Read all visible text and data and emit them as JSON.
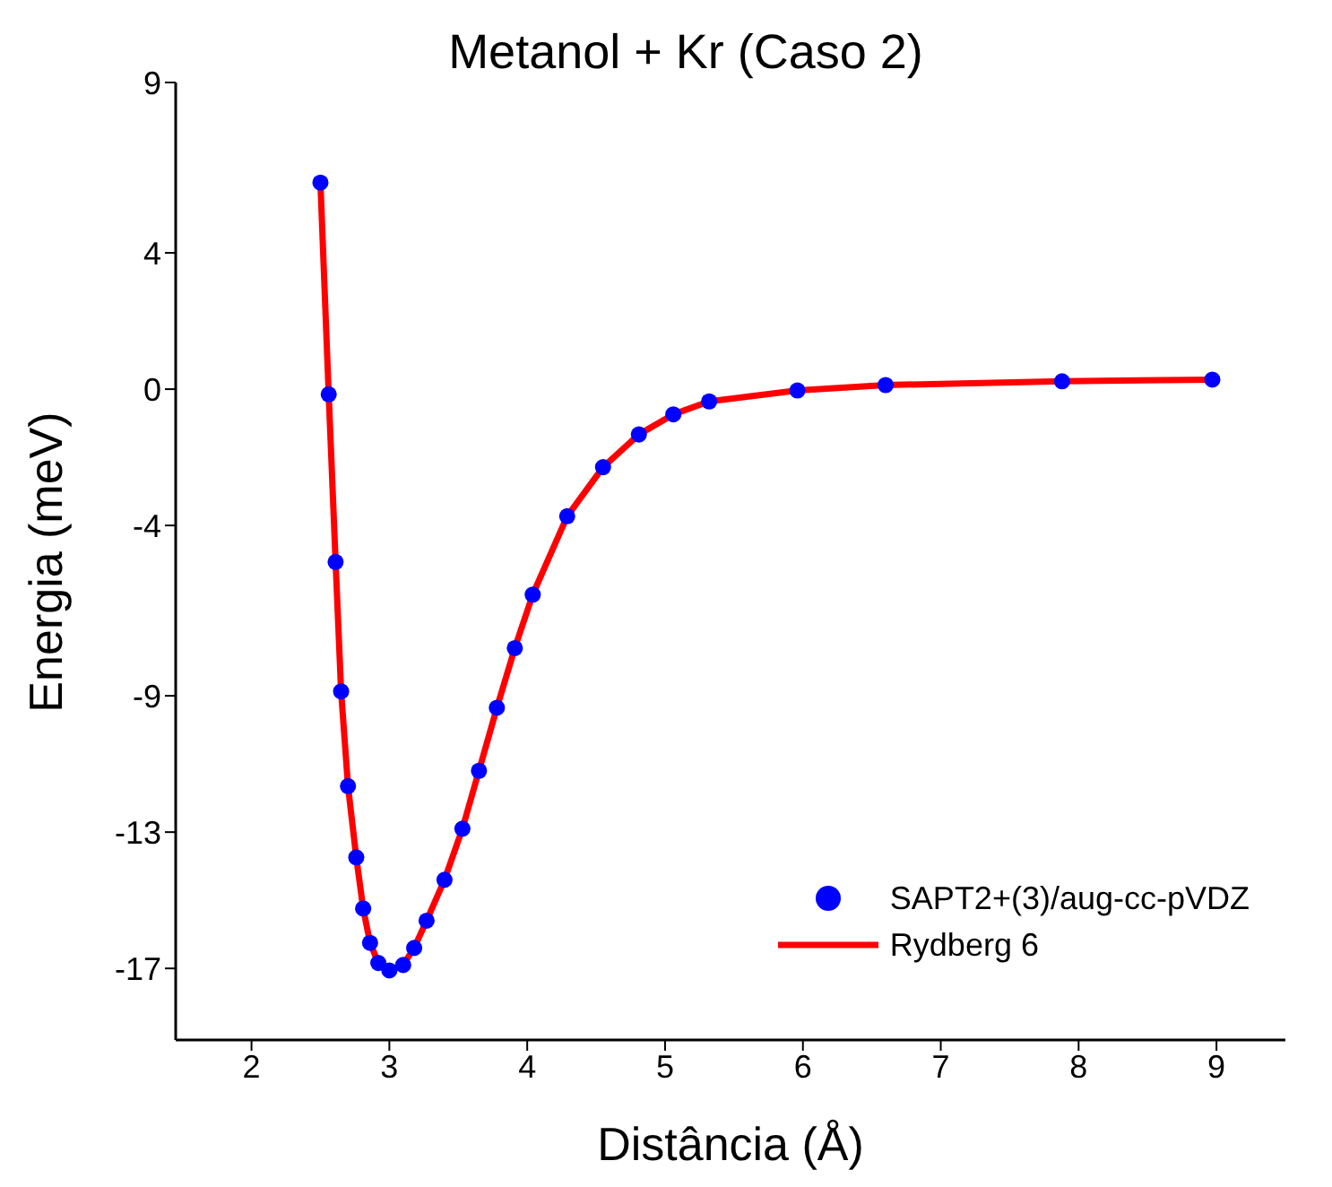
{
  "chart_data": {
    "type": "scatter",
    "title": "Metanol + Kr (Caso 2)",
    "xlabel": "Distância (Å)",
    "ylabel": "Energia (meV)",
    "xlim": [
      1.45,
      9.5
    ],
    "xticks": [
      2,
      3,
      4,
      5,
      6,
      7,
      8,
      9
    ],
    "ylim": [
      -19.1,
      9
    ],
    "yticks": [
      {
        "value": 9,
        "label": "9"
      },
      {
        "value": 4,
        "label": "4"
      },
      {
        "value": 0,
        "label": "0"
      },
      {
        "value": -4,
        "label": "-4"
      },
      {
        "value": -9,
        "label": "-9"
      },
      {
        "value": -13,
        "label": "-13"
      },
      {
        "value": -17,
        "label": "-17"
      }
    ],
    "grid": false,
    "legend": "bottom right",
    "series": [
      {
        "name": "SAPT2+(3)/aug-cc-pVDZ",
        "marker": "circle",
        "color": "#0000ff",
        "x": [
          2.5,
          2.56,
          2.61,
          2.65,
          2.7,
          2.76,
          2.81,
          2.86,
          2.92,
          3.0,
          3.1,
          3.18,
          3.27,
          3.4,
          3.53,
          3.65,
          3.78,
          3.91,
          4.04,
          4.29,
          4.55,
          4.81,
          5.06,
          5.32,
          5.96,
          6.6,
          7.88,
          8.97
        ],
        "values": [
          6.06,
          -0.15,
          -5.07,
          -8.87,
          -11.65,
          -13.74,
          -15.24,
          -16.25,
          -16.84,
          -17.06,
          -16.9,
          -16.4,
          -15.6,
          -14.4,
          -12.9,
          -11.2,
          -9.35,
          -7.6,
          -6.03,
          -3.73,
          -2.29,
          -1.33,
          -0.74,
          -0.36,
          -0.04,
          0.12,
          0.23,
          0.28
        ]
      },
      {
        "name": "Rydberg 6",
        "type": "line",
        "line_style": "solid",
        "color": "#ff0000",
        "x": [
          2.5,
          2.56,
          2.61,
          2.65,
          2.7,
          2.76,
          2.81,
          2.86,
          2.92,
          3.0,
          3.1,
          3.18,
          3.27,
          3.4,
          3.53,
          3.65,
          3.78,
          3.91,
          4.04,
          4.29,
          4.55,
          4.81,
          5.06,
          5.32,
          5.96,
          6.6,
          7.88,
          8.97
        ],
        "values": [
          6.06,
          -0.15,
          -5.07,
          -8.87,
          -11.65,
          -13.74,
          -15.24,
          -16.25,
          -16.84,
          -17.06,
          -16.9,
          -16.4,
          -15.6,
          -14.4,
          -12.9,
          -11.2,
          -9.35,
          -7.6,
          -6.03,
          -3.73,
          -2.29,
          -1.33,
          -0.74,
          -0.36,
          -0.04,
          0.12,
          0.23,
          0.28
        ]
      }
    ]
  }
}
